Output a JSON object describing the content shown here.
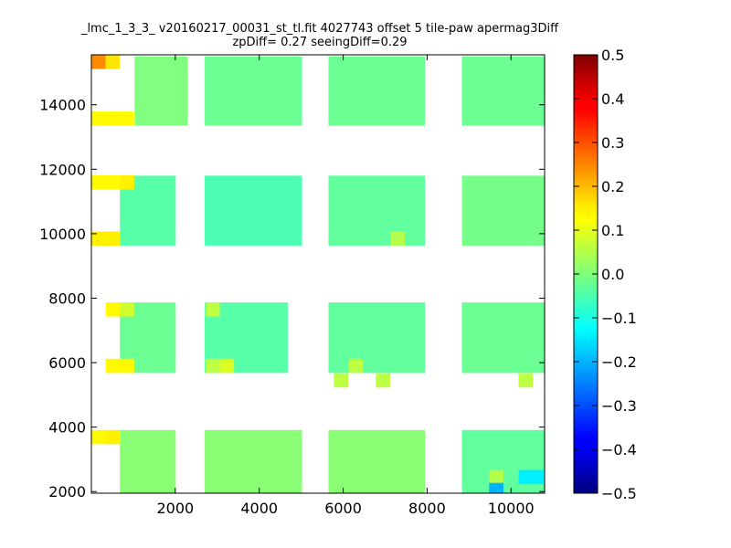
{
  "chart_data": {
    "type": "heatmap",
    "title": "_lmc_1_3_3_ v20160217_00031_st_tl.fit 4027743 offset 5 tile-paw apermag3Diff",
    "subtitle": "zpDiff= 0.27 seeingDiff=0.29",
    "xlabel": "",
    "ylabel": "",
    "xlim": [
      0,
      10800
    ],
    "ylim": [
      1950,
      15550
    ],
    "x_ticks": [
      "2000",
      "4000",
      "6000",
      "8000",
      "10000"
    ],
    "y_ticks": [
      "2000",
      "4000",
      "6000",
      "8000",
      "10000",
      "12000",
      "14000"
    ],
    "grid": false,
    "colorbar": {
      "min": -0.5,
      "max": 0.5,
      "ticks": [
        "0.5",
        "0.4",
        "0.3",
        "0.2",
        "0.1",
        "0.0",
        "−0.1",
        "−0.2",
        "−0.3",
        "−0.4",
        "−0.5"
      ],
      "colormap": "jet"
    },
    "cell_size": {
      "dx": 340,
      "dy": 440
    },
    "cells": [
      {
        "x": 170,
        "y": 15330,
        "v": 0.24
      },
      {
        "x": 510,
        "y": 15330,
        "v": 0.15
      },
      {
        "x": 170,
        "y": 13570,
        "v": 0.13
      },
      {
        "x": 510,
        "y": 13570,
        "v": 0.13
      },
      {
        "x": 850,
        "y": 13570,
        "v": 0.13
      },
      {
        "x": 170,
        "y": 11590,
        "v": 0.13
      },
      {
        "x": 510,
        "y": 11590,
        "v": 0.13
      },
      {
        "x": 850,
        "y": 11590,
        "v": 0.14
      },
      {
        "x": 170,
        "y": 9850,
        "v": 0.14
      },
      {
        "x": 510,
        "y": 9850,
        "v": 0.14
      },
      {
        "x": 510,
        "y": 7650,
        "v": 0.13
      },
      {
        "x": 850,
        "y": 7650,
        "v": 0.08
      },
      {
        "x": 510,
        "y": 5900,
        "v": 0.13
      },
      {
        "x": 850,
        "y": 5900,
        "v": 0.13
      },
      {
        "x": 170,
        "y": 3690,
        "v": 0.13
      },
      {
        "x": 510,
        "y": 3690,
        "v": 0.14
      },
      {
        "x": 2890,
        "y": 7650,
        "v": 0.06
      },
      {
        "x": 2890,
        "y": 5900,
        "v": 0.06
      },
      {
        "x": 3230,
        "y": 5900,
        "v": 0.09
      },
      {
        "x": 6300,
        "y": 5900,
        "v": 0.06
      },
      {
        "x": 5950,
        "y": 5450,
        "v": 0.06
      },
      {
        "x": 6950,
        "y": 5450,
        "v": 0.06
      },
      {
        "x": 7300,
        "y": 9850,
        "v": 0.05
      },
      {
        "x": 10350,
        "y": 5450,
        "v": 0.06
      },
      {
        "x": 9650,
        "y": 2450,
        "v": 0.05
      },
      {
        "x": 9650,
        "y": 2050,
        "v": -0.2
      },
      {
        "x": 10350,
        "y": 2450,
        "v": -0.14
      },
      {
        "x": 10650,
        "y": 2450,
        "v": -0.14
      }
    ],
    "regions": [
      {
        "x0": 1030,
        "x1": 2300,
        "y0": 15500,
        "y1": 13350,
        "v": 0.0
      },
      {
        "x0": 2700,
        "x1": 5020,
        "y0": 15500,
        "y1": 13350,
        "v": -0.02
      },
      {
        "x0": 5650,
        "x1": 7950,
        "y0": 15500,
        "y1": 13350,
        "v": -0.02
      },
      {
        "x0": 8830,
        "x1": 10800,
        "y0": 15500,
        "y1": 13350,
        "v": -0.02
      },
      {
        "x0": 680,
        "x1": 2010,
        "y0": 11800,
        "y1": 9630,
        "v": -0.04
      },
      {
        "x0": 2700,
        "x1": 5020,
        "y0": 11800,
        "y1": 9630,
        "v": -0.05
      },
      {
        "x0": 5650,
        "x1": 7950,
        "y0": 11800,
        "y1": 9630,
        "v": -0.03
      },
      {
        "x0": 8830,
        "x1": 10800,
        "y0": 11800,
        "y1": 9630,
        "v": -0.01
      },
      {
        "x0": 680,
        "x1": 2010,
        "y0": 7870,
        "y1": 5680,
        "v": -0.02
      },
      {
        "x0": 2700,
        "x1": 4680,
        "y0": 7870,
        "y1": 5680,
        "v": -0.04
      },
      {
        "x0": 5650,
        "x1": 7950,
        "y0": 7870,
        "y1": 5680,
        "v": -0.03
      },
      {
        "x0": 8830,
        "x1": 10800,
        "y0": 7870,
        "y1": 5680,
        "v": -0.02
      },
      {
        "x0": 680,
        "x1": 2010,
        "y0": 3910,
        "y1": 1950,
        "v": 0.01
      },
      {
        "x0": 2700,
        "x1": 5020,
        "y0": 3910,
        "y1": 1950,
        "v": 0.01
      },
      {
        "x0": 5650,
        "x1": 7950,
        "y0": 3910,
        "y1": 1950,
        "v": 0.01
      },
      {
        "x0": 8830,
        "x1": 10800,
        "y0": 3910,
        "y1": 1950,
        "v": -0.03
      }
    ]
  }
}
